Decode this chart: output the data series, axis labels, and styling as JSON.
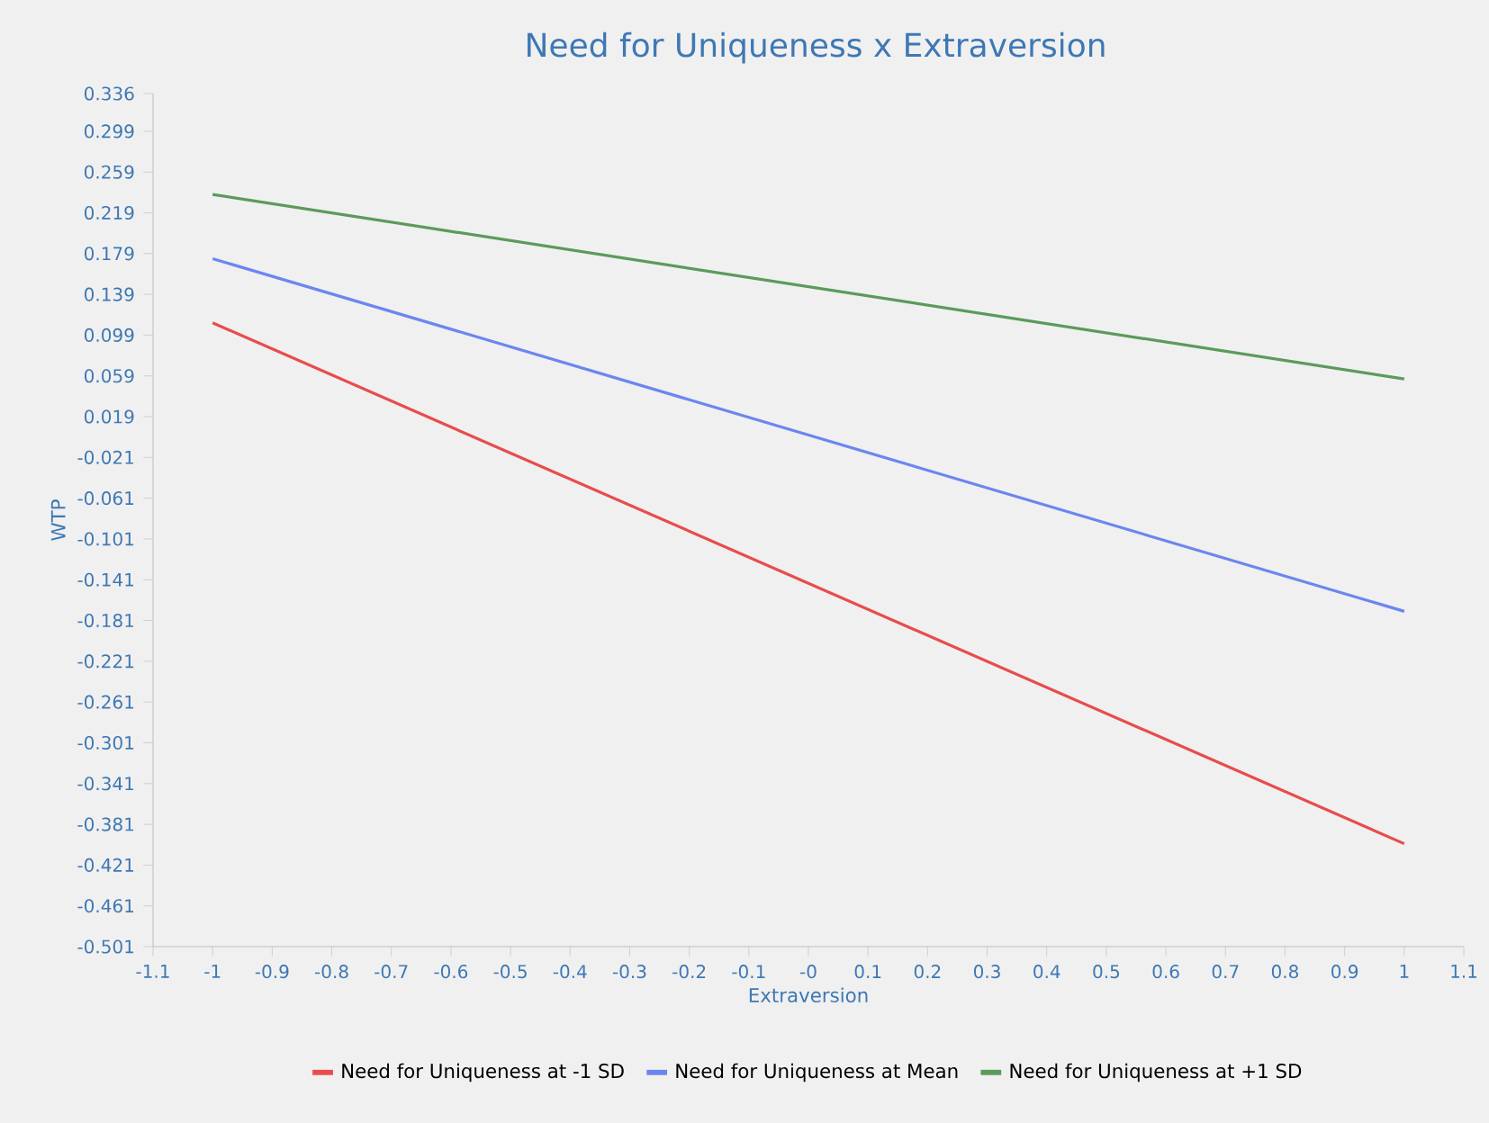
{
  "chart_data": {
    "type": "line",
    "title": "Need for Uniqueness x Extraversion",
    "xlabel": "Extraversion",
    "ylabel": "WTP",
    "x": [
      -1,
      1
    ],
    "series": [
      {
        "name": "Need for Uniqueness at -1 SD",
        "color": "#e84c4c",
        "values": [
          0.111,
          -0.4
        ]
      },
      {
        "name": "Need for Uniqueness at Mean",
        "color": "#6b86f0",
        "values": [
          0.174,
          -0.172
        ]
      },
      {
        "name": "Need for Uniqueness at +1 SD",
        "color": "#5b9a5b",
        "values": [
          0.237,
          0.056
        ]
      }
    ],
    "xlim": [
      -1.1,
      1.1
    ],
    "xticks": [
      -1.1,
      -1,
      -0.9,
      -0.8,
      -0.7,
      -0.6,
      -0.5,
      -0.4,
      -0.3,
      -0.2,
      -0.1,
      {
        "value": 0,
        "label": "-0"
      },
      0.1,
      0.2,
      0.3,
      0.4,
      0.5,
      0.6,
      0.7,
      0.8,
      0.9,
      1,
      1.1
    ],
    "ylim": [
      -0.501,
      0.336
    ],
    "yticks": [
      -0.501,
      -0.461,
      -0.421,
      -0.381,
      -0.341,
      -0.301,
      -0.261,
      -0.221,
      -0.181,
      -0.141,
      -0.101,
      -0.061,
      -0.021,
      0.019,
      0.059,
      0.099,
      0.139,
      0.179,
      0.219,
      0.259,
      0.299,
      0.336
    ],
    "grid": false,
    "legend": "bottom",
    "marker": "none",
    "line_style": "solid"
  }
}
